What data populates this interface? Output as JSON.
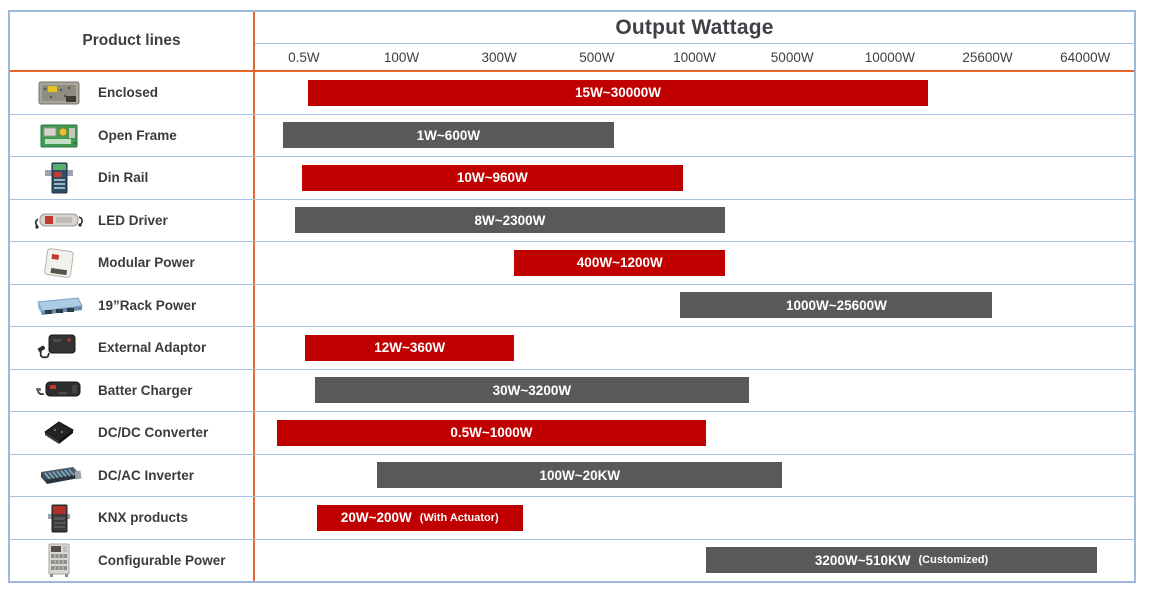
{
  "header": {
    "product_lines_title": "Product lines",
    "output_wattage_title": "Output Wattage",
    "ticks": [
      "0.5W",
      "100W",
      "300W",
      "500W",
      "1000W",
      "5000W",
      "10000W",
      "25600W",
      "64000W"
    ]
  },
  "colors": {
    "red": "#C00000",
    "gray": "#595959",
    "grid_blue": "#A9C2E4",
    "divider_orange": "#E8652D",
    "text_dark": "#3F3F3F",
    "bar_text": "#FFFFFF"
  },
  "rows": [
    {
      "label": "Enclosed",
      "icon": "enclosed-product-icon",
      "bar": {
        "label": "15W~30000W",
        "note": "",
        "color": "red",
        "left_pct": 6.0,
        "width_pct": 70.6
      }
    },
    {
      "label": "Open Frame",
      "icon": "open-frame-product-icon",
      "bar": {
        "label": "1W~600W",
        "note": "",
        "color": "gray",
        "left_pct": 3.2,
        "width_pct": 37.6
      }
    },
    {
      "label": "Din Rail",
      "icon": "din-rail-product-icon",
      "bar": {
        "label": "10W~960W",
        "note": "",
        "color": "red",
        "left_pct": 5.3,
        "width_pct": 43.4
      }
    },
    {
      "label": "LED Driver",
      "icon": "led-driver-product-icon",
      "bar": {
        "label": "8W~2300W",
        "note": "",
        "color": "gray",
        "left_pct": 4.5,
        "width_pct": 49.0
      }
    },
    {
      "label": "Modular Power",
      "icon": "modular-power-product-icon",
      "bar": {
        "label": "400W~1200W",
        "note": "",
        "color": "red",
        "left_pct": 29.5,
        "width_pct": 24.0
      }
    },
    {
      "label": "19”Rack Power",
      "icon": "rack-power-product-icon",
      "bar": {
        "label": "1000W~25600W",
        "note": "",
        "color": "gray",
        "left_pct": 48.4,
        "width_pct": 35.5
      }
    },
    {
      "label": "External Adaptor",
      "icon": "external-adaptor-product-icon",
      "bar": {
        "label": "12W~360W",
        "note": "",
        "color": "red",
        "left_pct": 5.7,
        "width_pct": 23.8
      }
    },
    {
      "label": "Batter Charger",
      "icon": "battery-charger-product-icon",
      "bar": {
        "label": "30W~3200W",
        "note": "",
        "color": "gray",
        "left_pct": 6.8,
        "width_pct": 49.4
      }
    },
    {
      "label": "DC/DC Converter",
      "icon": "dcdc-converter-product-icon",
      "bar": {
        "label": "0.5W~1000W",
        "note": "",
        "color": "red",
        "left_pct": 2.5,
        "width_pct": 48.8
      }
    },
    {
      "label": "DC/AC Inverter",
      "icon": "dcac-inverter-product-icon",
      "bar": {
        "label": "100W~20KW",
        "note": "",
        "color": "gray",
        "left_pct": 13.9,
        "width_pct": 46.1
      }
    },
    {
      "label": "KNX products",
      "icon": "knx-product-icon",
      "bar": {
        "label": "20W~200W",
        "note": "(With Actuator)",
        "color": "red",
        "left_pct": 7.0,
        "width_pct": 23.5
      }
    },
    {
      "label": "Configurable Power",
      "icon": "configurable-power-product-icon",
      "bar": {
        "label": "3200W~510KW",
        "note": "(Customized)",
        "color": "gray",
        "left_pct": 51.3,
        "width_pct": 44.5
      }
    }
  ],
  "chart_data": {
    "type": "bar",
    "orientation": "horizontal-range",
    "title": "Output Wattage",
    "x_ticks": [
      "0.5W",
      "100W",
      "300W",
      "500W",
      "1000W",
      "5000W",
      "10000W",
      "25600W",
      "64000W"
    ],
    "x_scale": "non-linear category wattage scale",
    "categories": [
      "Enclosed",
      "Open Frame",
      "Din Rail",
      "LED Driver",
      "Modular Power",
      "19”Rack Power",
      "External Adaptor",
      "Batter Charger",
      "DC/DC Converter",
      "DC/AC Inverter",
      "KNX products",
      "Configurable Power"
    ],
    "ranges": [
      {
        "product": "Enclosed",
        "range_label": "15W~30000W",
        "min_w": 15,
        "max_w": 30000,
        "color": "#C00000"
      },
      {
        "product": "Open Frame",
        "range_label": "1W~600W",
        "min_w": 1,
        "max_w": 600,
        "color": "#595959"
      },
      {
        "product": "Din Rail",
        "range_label": "10W~960W",
        "min_w": 10,
        "max_w": 960,
        "color": "#C00000"
      },
      {
        "product": "LED Driver",
        "range_label": "8W~2300W",
        "min_w": 8,
        "max_w": 2300,
        "color": "#595959"
      },
      {
        "product": "Modular Power",
        "range_label": "400W~1200W",
        "min_w": 400,
        "max_w": 1200,
        "color": "#C00000"
      },
      {
        "product": "19”Rack Power",
        "range_label": "1000W~25600W",
        "min_w": 1000,
        "max_w": 25600,
        "color": "#595959"
      },
      {
        "product": "External Adaptor",
        "range_label": "12W~360W",
        "min_w": 12,
        "max_w": 360,
        "color": "#C00000"
      },
      {
        "product": "Batter Charger",
        "range_label": "30W~3200W",
        "min_w": 30,
        "max_w": 3200,
        "color": "#595959"
      },
      {
        "product": "DC/DC Converter",
        "range_label": "0.5W~1000W",
        "min_w": 0.5,
        "max_w": 1000,
        "color": "#C00000"
      },
      {
        "product": "DC/AC Inverter",
        "range_label": "100W~20KW",
        "min_w": 100,
        "max_w": 20000,
        "color": "#595959"
      },
      {
        "product": "KNX products",
        "range_label": "20W~200W",
        "note": "(With Actuator)",
        "min_w": 20,
        "max_w": 200,
        "color": "#C00000"
      },
      {
        "product": "Configurable Power",
        "range_label": "3200W~510KW",
        "note": "(Customized)",
        "min_w": 3200,
        "max_w": 510000,
        "color": "#595959"
      }
    ],
    "legend": "none",
    "grid": "row separators only"
  }
}
